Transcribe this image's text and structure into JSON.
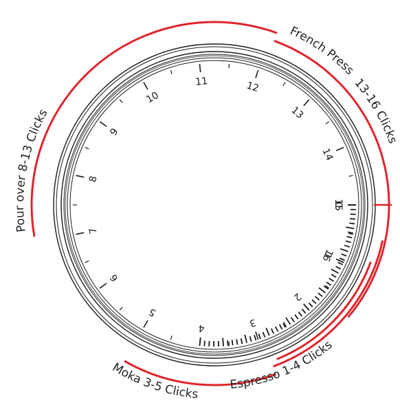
{
  "dial": {
    "numbers": [
      {
        "text": "0",
        "angle": 0
      },
      {
        "text": "1",
        "angle": 24
      },
      {
        "text": "2",
        "angle": 48
      },
      {
        "text": "3",
        "angle": 72
      },
      {
        "text": "4",
        "angle": 96
      },
      {
        "text": "5",
        "angle": 120
      },
      {
        "text": "6",
        "angle": 144
      },
      {
        "text": "7",
        "angle": 168
      },
      {
        "text": "8",
        "angle": 192
      },
      {
        "text": "9",
        "angle": 216
      },
      {
        "text": "10",
        "angle": 240
      },
      {
        "text": "11",
        "angle": 264
      },
      {
        "text": "12",
        "angle": 288
      },
      {
        "text": "13",
        "angle": 312
      },
      {
        "text": "14",
        "angle": 336
      },
      {
        "text": "15",
        "angle": 360
      },
      {
        "text": "16",
        "angle": 384
      }
    ],
    "fine_ticks": {
      "from_angle": 0,
      "to_angle": 96,
      "count": 50
    },
    "zero_marker_color": "#e0242c"
  },
  "brew_ranges": [
    {
      "id": "french-press",
      "name": "French Press",
      "range": "13-16 Clicks",
      "start_angle": 290,
      "end_angle": 400,
      "color": "#e0242c"
    },
    {
      "id": "pour-over",
      "name": "Pour over",
      "range": "8-13 Clicks",
      "start_angle": 170,
      "end_angle": 290,
      "color": "#e0242c"
    },
    {
      "id": "espresso",
      "name": "Espresso",
      "range": "1-4 Clicks",
      "start_angle": 12,
      "end_angle": 70,
      "color": "#e0242c"
    },
    {
      "id": "moka",
      "name": "Moka",
      "range": "3-5 Clicks",
      "start_angle": 70,
      "end_angle": 120,
      "color": "#e0242c"
    }
  ],
  "labels": {
    "french_press": "French Press",
    "french_press_clicks": "13-16 Clicks",
    "pour_over": "Pour over  8-13 Clicks",
    "espresso": "Espresso 1-4 Clicks",
    "moka": "Moka 3-5 Clicks"
  }
}
